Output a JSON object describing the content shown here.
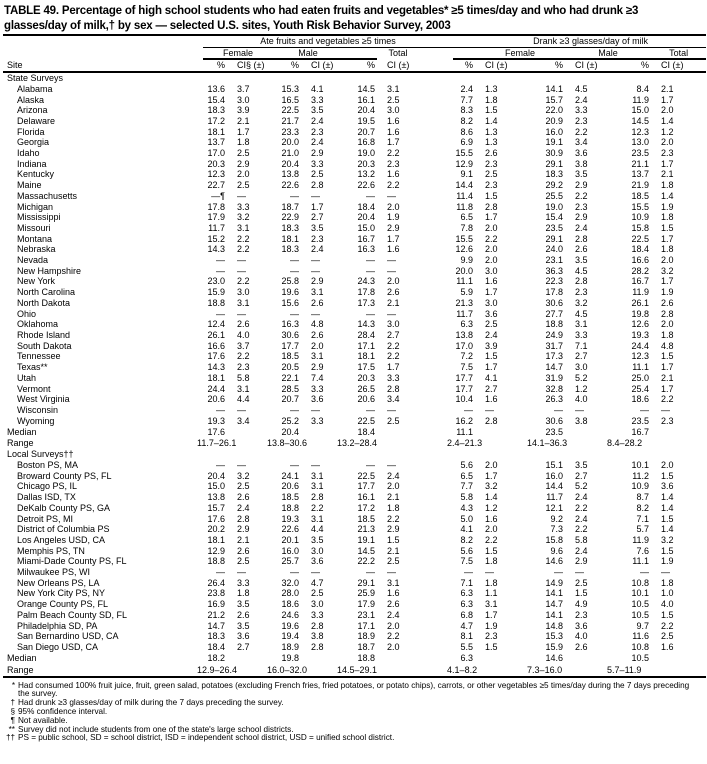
{
  "title": "TABLE 49. Percentage of high school students who had eaten fruits and vegetables* ≥5 times/day and who had drunk ≥3 glasses/day of milk,† by sex — selected U.S. sites, Youth Risk Behavior Survey, 2003",
  "header": {
    "site": "Site",
    "group1": "Ate fruits and vegetables ≥5 times",
    "group2": "Drank ≥3 glasses/day of milk",
    "sexes": [
      "Female",
      "Male",
      "Total"
    ],
    "pct": "%",
    "ci_first": "CI§ (±)",
    "ci": "CI (±)"
  },
  "sections": [
    {
      "label": "State Surveys",
      "rows": [
        [
          "Alabama",
          "13.6",
          "3.7",
          "15.3",
          "4.1",
          "14.5",
          "3.1",
          "2.4",
          "1.3",
          "14.1",
          "4.5",
          "8.4",
          "2.1"
        ],
        [
          "Alaska",
          "15.4",
          "3.0",
          "16.5",
          "3.3",
          "16.1",
          "2.5",
          "7.7",
          "1.8",
          "15.7",
          "2.4",
          "11.9",
          "1.7"
        ],
        [
          "Arizona",
          "18.3",
          "3.9",
          "22.5",
          "3.5",
          "20.4",
          "3.0",
          "8.3",
          "1.5",
          "22.0",
          "3.3",
          "15.0",
          "2.0"
        ],
        [
          "Delaware",
          "17.2",
          "2.1",
          "21.7",
          "2.4",
          "19.5",
          "1.6",
          "8.2",
          "1.4",
          "20.9",
          "2.3",
          "14.5",
          "1.4"
        ],
        [
          "Florida",
          "18.1",
          "1.7",
          "23.3",
          "2.3",
          "20.7",
          "1.6",
          "8.6",
          "1.3",
          "16.0",
          "2.2",
          "12.3",
          "1.2"
        ],
        [
          "Georgia",
          "13.7",
          "1.8",
          "20.0",
          "2.4",
          "16.8",
          "1.7",
          "6.9",
          "1.3",
          "19.1",
          "3.4",
          "13.0",
          "2.0"
        ],
        [
          "Idaho",
          "17.0",
          "2.5",
          "21.0",
          "2.9",
          "19.0",
          "2.2",
          "15.5",
          "2.6",
          "30.9",
          "3.6",
          "23.5",
          "2.3"
        ],
        [
          "Indiana",
          "20.3",
          "2.9",
          "20.4",
          "3.3",
          "20.3",
          "2.3",
          "12.9",
          "2.3",
          "29.1",
          "3.8",
          "21.1",
          "1.7"
        ],
        [
          "Kentucky",
          "12.3",
          "2.0",
          "13.8",
          "2.5",
          "13.2",
          "1.6",
          "9.1",
          "2.5",
          "18.3",
          "3.5",
          "13.7",
          "2.1"
        ],
        [
          "Maine",
          "22.7",
          "2.5",
          "22.6",
          "2.8",
          "22.6",
          "2.2",
          "14.4",
          "2.3",
          "29.2",
          "2.9",
          "21.9",
          "1.8"
        ],
        [
          "Massachusetts",
          "—¶",
          "—",
          "—",
          "—",
          "—",
          "—",
          "11.4",
          "1.5",
          "25.5",
          "2.2",
          "18.5",
          "1.4"
        ],
        [
          "Michigan",
          "17.8",
          "3.3",
          "18.7",
          "1.7",
          "18.4",
          "2.0",
          "11.8",
          "2.8",
          "19.0",
          "2.3",
          "15.5",
          "1.9"
        ],
        [
          "Mississippi",
          "17.9",
          "3.2",
          "22.9",
          "2.7",
          "20.4",
          "1.9",
          "6.5",
          "1.7",
          "15.4",
          "2.9",
          "10.9",
          "1.8"
        ],
        [
          "Missouri",
          "11.7",
          "3.1",
          "18.3",
          "3.5",
          "15.0",
          "2.9",
          "7.8",
          "2.0",
          "23.5",
          "2.4",
          "15.8",
          "1.5"
        ],
        [
          "Montana",
          "15.2",
          "2.2",
          "18.1",
          "2.3",
          "16.7",
          "1.7",
          "15.5",
          "2.2",
          "29.1",
          "2.8",
          "22.5",
          "1.7"
        ],
        [
          "Nebraska",
          "14.3",
          "2.2",
          "18.3",
          "2.4",
          "16.3",
          "1.6",
          "12.6",
          "2.0",
          "24.0",
          "2.6",
          "18.4",
          "1.8"
        ],
        [
          "Nevada",
          "—",
          "—",
          "—",
          "—",
          "—",
          "—",
          "9.9",
          "2.0",
          "23.1",
          "3.5",
          "16.6",
          "2.0"
        ],
        [
          "New Hampshire",
          "—",
          "—",
          "—",
          "—",
          "—",
          "—",
          "20.0",
          "3.0",
          "36.3",
          "4.5",
          "28.2",
          "3.2"
        ],
        [
          "New York",
          "23.0",
          "2.2",
          "25.8",
          "2.9",
          "24.3",
          "2.0",
          "11.1",
          "1.6",
          "22.3",
          "2.8",
          "16.7",
          "1.7"
        ],
        [
          "North Carolina",
          "15.9",
          "3.0",
          "19.6",
          "3.1",
          "17.8",
          "2.6",
          "5.9",
          "1.7",
          "17.8",
          "2.3",
          "11.9",
          "1.9"
        ],
        [
          "North Dakota",
          "18.8",
          "3.1",
          "15.6",
          "2.6",
          "17.3",
          "2.1",
          "21.3",
          "3.0",
          "30.6",
          "3.2",
          "26.1",
          "2.6"
        ],
        [
          "Ohio",
          "—",
          "—",
          "—",
          "—",
          "—",
          "—",
          "11.7",
          "3.6",
          "27.7",
          "4.5",
          "19.8",
          "2.8"
        ],
        [
          "Oklahoma",
          "12.4",
          "2.6",
          "16.3",
          "4.8",
          "14.3",
          "3.0",
          "6.3",
          "2.5",
          "18.8",
          "3.1",
          "12.6",
          "2.0"
        ],
        [
          "Rhode Island",
          "26.1",
          "4.0",
          "30.6",
          "2.6",
          "28.4",
          "2.7",
          "13.8",
          "2.4",
          "24.9",
          "3.3",
          "19.3",
          "1.8"
        ],
        [
          "South Dakota",
          "16.6",
          "3.7",
          "17.7",
          "2.0",
          "17.1",
          "2.2",
          "17.0",
          "3.9",
          "31.7",
          "7.1",
          "24.4",
          "4.8"
        ],
        [
          "Tennessee",
          "17.6",
          "2.2",
          "18.5",
          "3.1",
          "18.1",
          "2.2",
          "7.2",
          "1.5",
          "17.3",
          "2.7",
          "12.3",
          "1.5"
        ],
        [
          "Texas**",
          "14.3",
          "2.3",
          "20.5",
          "2.9",
          "17.5",
          "1.7",
          "7.5",
          "1.7",
          "14.7",
          "3.0",
          "11.1",
          "1.7"
        ],
        [
          "Utah",
          "18.1",
          "5.8",
          "22.1",
          "7.4",
          "20.3",
          "3.3",
          "17.7",
          "4.1",
          "31.9",
          "5.2",
          "25.0",
          "2.1"
        ],
        [
          "Vermont",
          "24.4",
          "3.1",
          "28.5",
          "3.3",
          "26.5",
          "2.8",
          "17.7",
          "2.7",
          "32.8",
          "1.2",
          "25.4",
          "1.7"
        ],
        [
          "West Virginia",
          "20.6",
          "4.4",
          "20.7",
          "3.6",
          "20.6",
          "3.4",
          "10.4",
          "1.6",
          "26.3",
          "4.0",
          "18.6",
          "2.2"
        ],
        [
          "Wisconsin",
          "—",
          "—",
          "—",
          "—",
          "—",
          "—",
          "—",
          "—",
          "—",
          "—",
          "—",
          "—"
        ],
        [
          "Wyoming",
          "19.3",
          "3.4",
          "25.2",
          "3.3",
          "22.5",
          "2.5",
          "16.2",
          "2.8",
          "30.6",
          "3.8",
          "23.5",
          "2.3"
        ]
      ],
      "median": [
        "Median",
        "17.6",
        "20.4",
        "18.4",
        "11.1",
        "23.5",
        "16.7"
      ],
      "range": [
        "Range",
        "11.7–26.1",
        "13.8–30.6",
        "13.2–28.4",
        "2.4–21.3",
        "14.1–36.3",
        "8.4–28.2"
      ]
    },
    {
      "label": "Local Surveys††",
      "rows": [
        [
          "Boston PS, MA",
          "—",
          "—",
          "—",
          "—",
          "—",
          "—",
          "5.6",
          "2.0",
          "15.1",
          "3.5",
          "10.1",
          "2.0"
        ],
        [
          "Broward County PS, FL",
          "20.4",
          "3.2",
          "24.1",
          "3.1",
          "22.5",
          "2.4",
          "6.5",
          "1.7",
          "16.0",
          "2.7",
          "11.2",
          "1.5"
        ],
        [
          "Chicago PS, IL",
          "15.0",
          "2.5",
          "20.6",
          "3.1",
          "17.7",
          "2.0",
          "7.7",
          "3.2",
          "14.4",
          "5.2",
          "10.9",
          "3.6"
        ],
        [
          "Dallas ISD, TX",
          "13.8",
          "2.6",
          "18.5",
          "2.8",
          "16.1",
          "2.1",
          "5.8",
          "1.4",
          "11.7",
          "2.4",
          "8.7",
          "1.4"
        ],
        [
          "DeKalb County PS, GA",
          "15.7",
          "2.4",
          "18.8",
          "2.2",
          "17.2",
          "1.8",
          "4.3",
          "1.2",
          "12.1",
          "2.2",
          "8.2",
          "1.4"
        ],
        [
          "Detroit PS, MI",
          "17.6",
          "2.8",
          "19.3",
          "3.1",
          "18.5",
          "2.2",
          "5.0",
          "1.6",
          "9.2",
          "2.4",
          "7.1",
          "1.5"
        ],
        [
          "District of Columbia PS",
          "20.2",
          "2.9",
          "22.6",
          "4.4",
          "21.3",
          "2.9",
          "4.1",
          "2.0",
          "7.3",
          "2.2",
          "5.7",
          "1.4"
        ],
        [
          "Los Angeles USD, CA",
          "18.1",
          "2.1",
          "20.1",
          "3.5",
          "19.1",
          "1.5",
          "8.2",
          "2.2",
          "15.8",
          "5.8",
          "11.9",
          "3.2"
        ],
        [
          "Memphis PS, TN",
          "12.9",
          "2.6",
          "16.0",
          "3.0",
          "14.5",
          "2.1",
          "5.6",
          "1.5",
          "9.6",
          "2.4",
          "7.6",
          "1.5"
        ],
        [
          "Miami-Dade County PS, FL",
          "18.8",
          "2.5",
          "25.7",
          "3.6",
          "22.2",
          "2.5",
          "7.5",
          "1.8",
          "14.6",
          "2.9",
          "11.1",
          "1.9"
        ],
        [
          "Milwaukee PS, WI",
          "—",
          "—",
          "—",
          "—",
          "—",
          "—",
          "—",
          "—",
          "—",
          "—",
          "—",
          "—"
        ],
        [
          "New Orleans PS, LA",
          "26.4",
          "3.3",
          "32.0",
          "4.7",
          "29.1",
          "3.1",
          "7.1",
          "1.8",
          "14.9",
          "2.5",
          "10.8",
          "1.8"
        ],
        [
          "New York City PS, NY",
          "23.8",
          "1.8",
          "28.0",
          "2.5",
          "25.9",
          "1.6",
          "6.3",
          "1.1",
          "14.1",
          "1.5",
          "10.1",
          "1.0"
        ],
        [
          "Orange County PS, FL",
          "16.9",
          "3.5",
          "18.6",
          "3.0",
          "17.9",
          "2.6",
          "6.3",
          "3.1",
          "14.7",
          "4.9",
          "10.5",
          "4.0"
        ],
        [
          "Palm Beach County SD, FL",
          "21.2",
          "2.6",
          "24.6",
          "3.3",
          "23.1",
          "2.4",
          "6.8",
          "1.7",
          "14.1",
          "2.3",
          "10.5",
          "1.5"
        ],
        [
          "Philadelphia SD, PA",
          "14.7",
          "3.5",
          "19.6",
          "2.8",
          "17.1",
          "2.0",
          "4.7",
          "1.9",
          "14.8",
          "3.6",
          "9.7",
          "2.2"
        ],
        [
          "San Bernardino USD, CA",
          "18.3",
          "3.6",
          "19.4",
          "3.8",
          "18.9",
          "2.2",
          "8.1",
          "2.3",
          "15.3",
          "4.0",
          "11.6",
          "2.5"
        ],
        [
          "San Diego USD, CA",
          "18.4",
          "2.7",
          "18.9",
          "2.8",
          "18.7",
          "2.0",
          "5.5",
          "1.5",
          "15.9",
          "2.6",
          "10.8",
          "1.6"
        ]
      ],
      "median": [
        "Median",
        "18.2",
        "19.8",
        "18.8",
        "6.3",
        "14.6",
        "10.5"
      ],
      "range": [
        "Range",
        "12.9–26.4",
        "16.0–32.0",
        "14.5–29.1",
        "4.1–8.2",
        "7.3–16.0",
        "5.7–11.9"
      ]
    }
  ],
  "footnotes": [
    {
      "mark": "*",
      "text": "Had consumed 100% fruit juice, fruit, green salad, potatoes (excluding French fries, fried potatoes, or potato chips), carrots, or other vegetables ≥5 times/day during the 7 days preceding the survey."
    },
    {
      "mark": "†",
      "text": "Had drunk ≥3 glasses/day of milk during the 7 days preceding the survey."
    },
    {
      "mark": "§",
      "text": "95% confidence interval."
    },
    {
      "mark": "¶",
      "text": "Not available."
    },
    {
      "mark": "**",
      "text": "Survey did not include students from one of the state's large school districts."
    },
    {
      "mark": "††",
      "text": "PS = public school, SD = school district, ISD = independent school district, USD = unified school district."
    }
  ]
}
